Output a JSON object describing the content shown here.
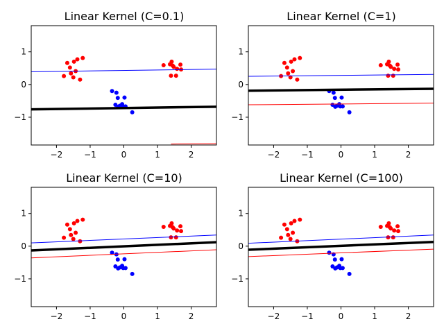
{
  "colors": {
    "positive": "#ff0000",
    "negative": "#0000ff",
    "boundary": "#000000"
  },
  "chart_data": [
    {
      "type": "scatter",
      "title": "Linear Kernel (C=0.1)",
      "xlim": [
        -2.75,
        2.75
      ],
      "ylim": [
        -1.85,
        1.8
      ],
      "xticks": [
        -2,
        -1,
        0,
        1,
        2
      ],
      "yticks": [
        -1,
        0,
        1
      ],
      "xtick_labels": [
        "−2",
        "−1",
        "0",
        "1",
        "2"
      ],
      "ytick_labels": [
        "−1",
        "0",
        "1"
      ],
      "lines": {
        "decision": [
          [
            -2.75,
            -0.76
          ],
          [
            2.75,
            -0.68
          ]
        ],
        "margin_blue": [
          [
            -2.75,
            0.39
          ],
          [
            2.75,
            0.47
          ]
        ],
        "margin_red": [
          [
            1.4,
            -1.82
          ],
          [
            2.75,
            -1.81
          ]
        ]
      }
    },
    {
      "type": "scatter",
      "title": "Linear Kernel (C=1)",
      "xlim": [
        -2.75,
        2.75
      ],
      "ylim": [
        -1.85,
        1.8
      ],
      "xticks": [
        -2,
        -1,
        0,
        1,
        2
      ],
      "yticks": [
        -1,
        0,
        1
      ],
      "xtick_labels": [
        "−2",
        "−1",
        "0",
        "1",
        "2"
      ],
      "ytick_labels": [
        "−1",
        "0",
        "1"
      ],
      "lines": {
        "decision": [
          [
            -2.75,
            -0.19
          ],
          [
            2.75,
            -0.13
          ]
        ],
        "margin_blue": [
          [
            -2.75,
            0.25
          ],
          [
            2.75,
            0.31
          ]
        ],
        "margin_red": [
          [
            -2.75,
            -0.62
          ],
          [
            2.75,
            -0.57
          ]
        ]
      }
    },
    {
      "type": "scatter",
      "title": "Linear Kernel (C=10)",
      "xlim": [
        -2.75,
        2.75
      ],
      "ylim": [
        -1.85,
        1.8
      ],
      "xticks": [
        -2,
        -1,
        0,
        1,
        2
      ],
      "yticks": [
        -1,
        0,
        1
      ],
      "xtick_labels": [
        "−2",
        "−1",
        "0",
        "1",
        "2"
      ],
      "ytick_labels": [
        "−1",
        "0",
        "1"
      ],
      "lines": {
        "decision": [
          [
            -2.75,
            -0.13
          ],
          [
            2.75,
            0.12
          ]
        ],
        "margin_blue": [
          [
            -2.75,
            0.1
          ],
          [
            2.75,
            0.34
          ]
        ],
        "margin_red": [
          [
            -2.75,
            -0.36
          ],
          [
            2.75,
            -0.11
          ]
        ]
      }
    },
    {
      "type": "scatter",
      "title": "Linear Kernel (C=100)",
      "xlim": [
        -2.75,
        2.75
      ],
      "ylim": [
        -1.85,
        1.8
      ],
      "xticks": [
        -2,
        -1,
        0,
        1,
        2
      ],
      "yticks": [
        -1,
        0,
        1
      ],
      "xtick_labels": [
        "−2",
        "−1",
        "0",
        "1",
        "2"
      ],
      "ytick_labels": [
        "−1",
        "0",
        "1"
      ],
      "lines": {
        "decision": [
          [
            -2.75,
            -0.11
          ],
          [
            2.75,
            0.13
          ]
        ],
        "margin_blue": [
          [
            -2.75,
            0.09
          ],
          [
            2.75,
            0.34
          ]
        ],
        "margin_red": [
          [
            -2.75,
            -0.32
          ],
          [
            2.75,
            -0.09
          ]
        ]
      }
    }
  ],
  "points": {
    "red": [
      [
        -1.78,
        0.26
      ],
      [
        -1.68,
        0.66
      ],
      [
        -1.6,
        0.52
      ],
      [
        -1.57,
        0.34
      ],
      [
        -1.5,
        0.22
      ],
      [
        -1.48,
        0.7
      ],
      [
        -1.43,
        0.41
      ],
      [
        -1.38,
        0.77
      ],
      [
        -1.3,
        0.15
      ],
      [
        -1.22,
        0.81
      ],
      [
        1.18,
        0.59
      ],
      [
        1.37,
        0.62
      ],
      [
        1.4,
        0.27
      ],
      [
        1.42,
        0.7
      ],
      [
        1.45,
        0.58
      ],
      [
        1.48,
        0.54
      ],
      [
        1.55,
        0.27
      ],
      [
        1.58,
        0.48
      ],
      [
        1.68,
        0.61
      ],
      [
        1.7,
        0.46
      ]
    ],
    "blue": [
      [
        -0.35,
        -0.2
      ],
      [
        -0.25,
        -0.62
      ],
      [
        -0.22,
        -0.25
      ],
      [
        -0.18,
        -0.41
      ],
      [
        -0.17,
        -0.68
      ],
      [
        -0.12,
        -0.65
      ],
      [
        -0.05,
        -0.6
      ],
      [
        -0.02,
        -0.67
      ],
      [
        0.02,
        -0.4
      ],
      [
        0.05,
        -0.67
      ],
      [
        0.25,
        -0.85
      ]
    ]
  }
}
